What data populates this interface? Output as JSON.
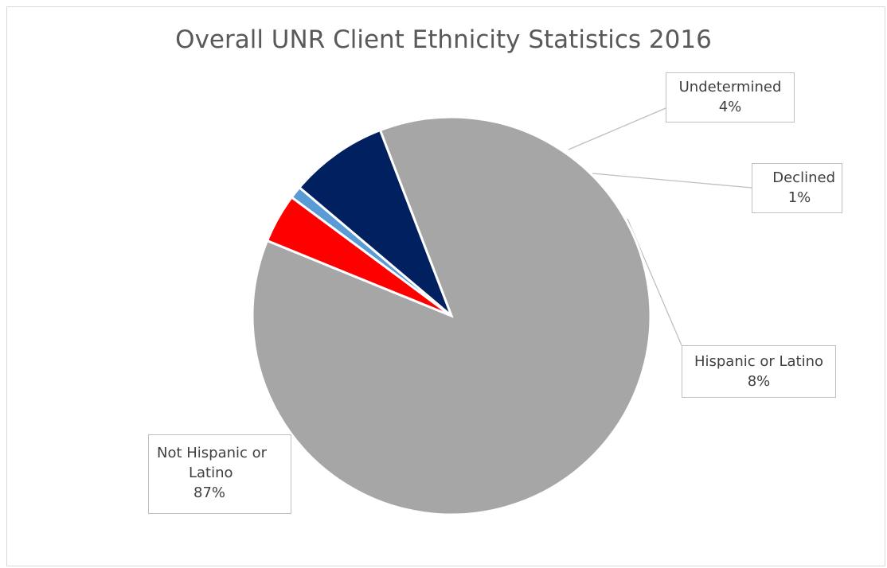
{
  "chart_data": {
    "type": "pie",
    "title": "Overall UNR Client Ethnicity Statistics 2016",
    "slices": [
      {
        "name": "Not Hispanic or Latino",
        "label_lines": [
          "Not Hispanic or",
          "Latino"
        ],
        "pct_label": "87%",
        "value": 87,
        "color": "#a6a6a6"
      },
      {
        "name": "Undetermined",
        "label_lines": [
          "Undetermined"
        ],
        "pct_label": "4%",
        "value": 4,
        "color": "#ff0000"
      },
      {
        "name": "Declined",
        "label_lines": [
          "Declined"
        ],
        "pct_label": "1%",
        "value": 1,
        "color": "#5b9bd5"
      },
      {
        "name": "Hispanic or Latino",
        "label_lines": [
          "Hispanic or Latino"
        ],
        "pct_label": "8%",
        "value": 8,
        "color": "#002060"
      }
    ],
    "legend": "none",
    "data_labels": "callouts"
  }
}
